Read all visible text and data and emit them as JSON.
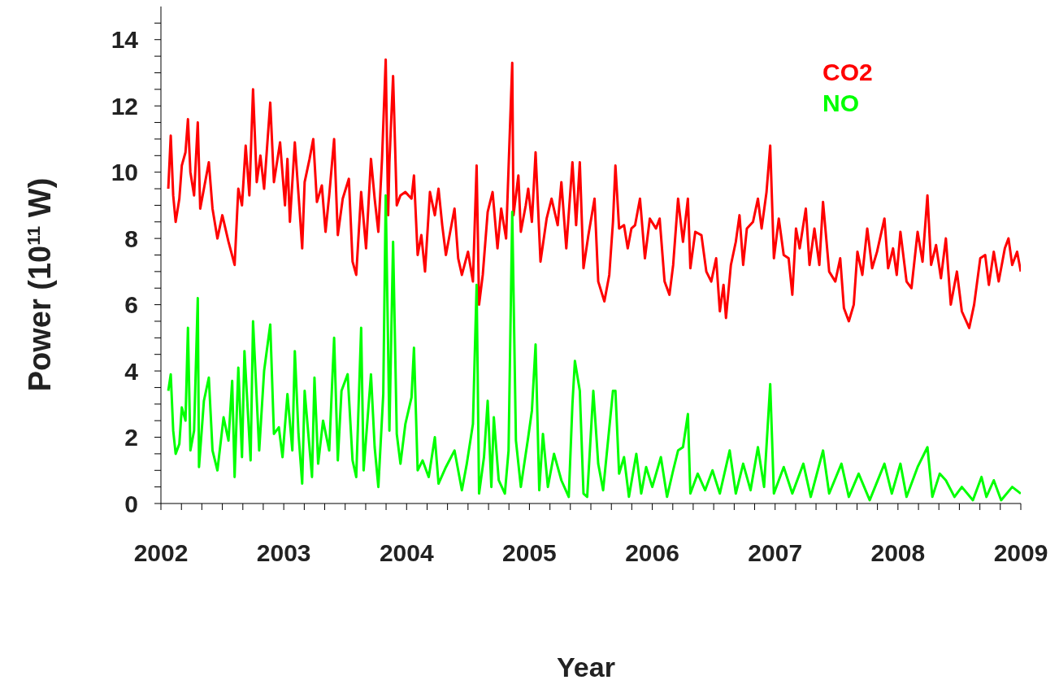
{
  "chart_data": {
    "type": "line",
    "xlabel": "Year",
    "ylabel": "Power (10$^{11}$ W)",
    "xlim": [
      2002,
      2009
    ],
    "ylim": [
      0,
      15
    ],
    "xticks": [
      2002,
      {
        "value": 2002.167,
        "label": null
      },
      {
        "value": 2002.333,
        "label": null
      },
      {
        "value": 2002.5,
        "label": null
      },
      {
        "value": 2002.667,
        "label": null
      },
      {
        "value": 2002.833,
        "label": null
      },
      2003,
      {
        "value": 2003.167,
        "label": null
      },
      {
        "value": 2003.333,
        "label": null
      },
      {
        "value": 2003.5,
        "label": null
      },
      {
        "value": 2003.667,
        "label": null
      },
      {
        "value": 2003.833,
        "label": null
      },
      2004,
      {
        "value": 2004.167,
        "label": null
      },
      {
        "value": 2004.333,
        "label": null
      },
      {
        "value": 2004.5,
        "label": null
      },
      {
        "value": 2004.667,
        "label": null
      },
      {
        "value": 2004.833,
        "label": null
      },
      2005,
      {
        "value": 2005.167,
        "label": null
      },
      {
        "value": 2005.333,
        "label": null
      },
      {
        "value": 2005.5,
        "label": null
      },
      {
        "value": 2005.667,
        "label": null
      },
      {
        "value": 2005.833,
        "label": null
      },
      2006,
      {
        "value": 2006.167,
        "label": null
      },
      {
        "value": 2006.333,
        "label": null
      },
      {
        "value": 2006.5,
        "label": null
      },
      {
        "value": 2006.667,
        "label": null
      },
      {
        "value": 2006.833,
        "label": null
      },
      2007,
      {
        "value": 2007.167,
        "label": null
      },
      {
        "value": 2007.333,
        "label": null
      },
      {
        "value": 2007.5,
        "label": null
      },
      {
        "value": 2007.667,
        "label": null
      },
      {
        "value": 2007.833,
        "label": null
      },
      2008,
      {
        "value": 2008.167,
        "label": null
      },
      {
        "value": 2008.333,
        "label": null
      },
      {
        "value": 2008.5,
        "label": null
      },
      {
        "value": 2008.667,
        "label": null
      },
      {
        "value": 2008.833,
        "label": null
      },
      2009
    ],
    "yticks": [
      0,
      {
        "value": 0.5,
        "label": null
      },
      {
        "value": 1,
        "label": null
      },
      {
        "value": 1.5,
        "label": null
      },
      2,
      {
        "value": 2.5,
        "label": null
      },
      {
        "value": 3,
        "label": null
      },
      {
        "value": 3.5,
        "label": null
      },
      4,
      {
        "value": 4.5,
        "label": null
      },
      {
        "value": 5,
        "label": null
      },
      {
        "value": 5.5,
        "label": null
      },
      6,
      {
        "value": 6.5,
        "label": null
      },
      {
        "value": 7,
        "label": null
      },
      {
        "value": 7.5,
        "label": null
      },
      8,
      {
        "value": 8.5,
        "label": null
      },
      {
        "value": 9,
        "label": null
      },
      {
        "value": 9.5,
        "label": null
      },
      10,
      {
        "value": 10.5,
        "label": null
      },
      {
        "value": 11,
        "label": null
      },
      {
        "value": 11.5,
        "label": null
      },
      12,
      {
        "value": 12.5,
        "label": null
      },
      {
        "value": 13,
        "label": null
      },
      {
        "value": 13.5,
        "label": null
      },
      14,
      {
        "value": 14.5,
        "label": null
      }
    ],
    "grid": false,
    "legend": "top right",
    "marker": "none",
    "line_style": "solid",
    "series": [
      {
        "name": "CO2",
        "color": "#ff0000",
        "x": [
          2002.06,
          2002.08,
          2002.1,
          2002.12,
          2002.15,
          2002.17,
          2002.2,
          2002.22,
          2002.24,
          2002.27,
          2002.3,
          2002.32,
          2002.37,
          2002.39,
          2002.42,
          2002.46,
          2002.5,
          2002.55,
          2002.6,
          2002.63,
          2002.66,
          2002.69,
          2002.72,
          2002.75,
          2002.78,
          2002.81,
          2002.84,
          2002.89,
          2002.92,
          2002.97,
          2003.01,
          2003.03,
          2003.05,
          2003.09,
          2003.13,
          2003.15,
          2003.17,
          2003.21,
          2003.24,
          2003.27,
          2003.31,
          2003.34,
          2003.37,
          2003.41,
          2003.44,
          2003.48,
          2003.53,
          2003.56,
          2003.59,
          2003.63,
          2003.67,
          2003.71,
          2003.74,
          2003.77,
          2003.8,
          2003.83,
          2003.85,
          2003.86,
          2003.89,
          2003.92,
          2003.95,
          2003.99,
          2004.04,
          2004.06,
          2004.09,
          2004.12,
          2004.15,
          2004.19,
          2004.23,
          2004.26,
          2004.29,
          2004.32,
          2004.39,
          2004.42,
          2004.45,
          2004.5,
          2004.54,
          2004.57,
          2004.59,
          2004.62,
          2004.66,
          2004.7,
          2004.74,
          2004.77,
          2004.81,
          2004.86,
          2004.87,
          2004.91,
          2004.93,
          2004.97,
          2004.99,
          2005.02,
          2005.05,
          2005.09,
          2005.14,
          2005.18,
          2005.23,
          2005.26,
          2005.3,
          2005.35,
          2005.38,
          2005.41,
          2005.44,
          2005.48,
          2005.53,
          2005.56,
          2005.61,
          2005.65,
          2005.68,
          2005.7,
          2005.73,
          2005.77,
          2005.8,
          2005.83,
          2005.86,
          2005.9,
          2005.94,
          2005.98,
          2006.03,
          2006.06,
          2006.1,
          2006.14,
          2006.17,
          2006.21,
          2006.25,
          2006.29,
          2006.31,
          2006.35,
          2006.4,
          2006.44,
          2006.48,
          2006.52,
          2006.55,
          2006.58,
          2006.6,
          2006.64,
          2006.68,
          2006.71,
          2006.74,
          2006.77,
          2006.82,
          2006.86,
          2006.89,
          2006.93,
          2006.96,
          2006.99,
          2007.03,
          2007.07,
          2007.11,
          2007.14,
          2007.17,
          2007.2,
          2007.25,
          2007.28,
          2007.32,
          2007.36,
          2007.39,
          2007.44,
          2007.49,
          2007.53,
          2007.56,
          2007.6,
          2007.64,
          2007.67,
          2007.71,
          2007.75,
          2007.79,
          2007.83,
          2007.89,
          2007.92,
          2007.96,
          2007.99,
          2008.02,
          2008.07,
          2008.11,
          2008.16,
          2008.2,
          2008.24,
          2008.27,
          2008.31,
          2008.35,
          2008.39,
          2008.43,
          2008.48,
          2008.52,
          2008.58,
          2008.62,
          2008.67,
          2008.71,
          2008.74,
          2008.78,
          2008.82,
          2008.87,
          2008.9,
          2008.93,
          2008.97,
          2009.0
        ],
        "values": [
          9.5,
          11.1,
          9.3,
          8.5,
          9.2,
          10.2,
          10.6,
          11.6,
          10.0,
          9.3,
          11.5,
          8.9,
          9.9,
          10.3,
          8.9,
          8.0,
          8.7,
          7.9,
          7.2,
          9.5,
          9.0,
          10.8,
          9.3,
          12.5,
          9.7,
          10.5,
          9.5,
          12.1,
          9.7,
          10.9,
          9.0,
          10.4,
          8.5,
          10.9,
          8.8,
          7.7,
          9.7,
          10.4,
          11.0,
          9.1,
          9.6,
          8.2,
          9.3,
          11.0,
          8.1,
          9.2,
          9.8,
          7.3,
          6.9,
          9.4,
          7.7,
          10.4,
          9.2,
          8.2,
          10.4,
          13.4,
          8.7,
          10.3,
          12.9,
          9.0,
          9.3,
          9.4,
          9.2,
          9.9,
          7.5,
          8.1,
          7.0,
          9.4,
          8.7,
          9.5,
          8.4,
          7.5,
          8.9,
          7.4,
          6.9,
          7.6,
          6.7,
          10.2,
          6.0,
          6.9,
          8.8,
          9.4,
          7.7,
          8.9,
          8.0,
          13.3,
          8.7,
          9.9,
          8.2,
          9.0,
          9.5,
          8.5,
          10.6,
          7.3,
          8.6,
          9.2,
          8.4,
          9.7,
          7.7,
          10.3,
          8.4,
          10.3,
          7.1,
          8.1,
          9.2,
          6.7,
          6.1,
          6.9,
          8.5,
          10.2,
          8.3,
          8.4,
          7.7,
          8.3,
          8.4,
          9.2,
          7.4,
          8.6,
          8.3,
          8.6,
          6.7,
          6.3,
          7.2,
          9.2,
          7.9,
          9.2,
          7.1,
          8.2,
          8.1,
          7.0,
          6.7,
          7.4,
          5.8,
          6.6,
          5.6,
          7.2,
          7.9,
          8.7,
          7.2,
          8.3,
          8.5,
          9.2,
          8.3,
          9.4,
          10.8,
          7.4,
          8.6,
          7.5,
          7.4,
          6.3,
          8.3,
          7.7,
          8.9,
          7.2,
          8.3,
          7.2,
          9.1,
          7.0,
          6.7,
          7.4,
          5.9,
          5.5,
          6.0,
          7.6,
          6.9,
          8.3,
          7.1,
          7.6,
          8.6,
          7.1,
          7.7,
          6.9,
          8.2,
          6.7,
          6.5,
          8.2,
          7.3,
          9.3,
          7.2,
          7.8,
          6.8,
          8.0,
          6.0,
          7.0,
          5.8,
          5.3,
          6.0,
          7.4,
          7.5,
          6.6,
          7.6,
          6.7,
          7.7,
          8.0,
          7.2,
          7.6,
          7.0
        ]
      },
      {
        "name": "NO",
        "color": "#00ff00",
        "x": [
          2002.06,
          2002.08,
          2002.1,
          2002.12,
          2002.15,
          2002.17,
          2002.2,
          2002.22,
          2002.24,
          2002.27,
          2002.3,
          2002.31,
          2002.35,
          2002.39,
          2002.42,
          2002.46,
          2002.51,
          2002.55,
          2002.58,
          2002.6,
          2002.63,
          2002.66,
          2002.68,
          2002.73,
          2002.75,
          2002.8,
          2002.84,
          2002.89,
          2002.92,
          2002.96,
          2002.99,
          2003.03,
          2003.07,
          2003.09,
          2003.12,
          2003.15,
          2003.17,
          2003.23,
          2003.25,
          2003.28,
          2003.32,
          2003.37,
          2003.41,
          2003.44,
          2003.47,
          2003.52,
          2003.56,
          2003.59,
          2003.63,
          2003.65,
          2003.71,
          2003.74,
          2003.77,
          2003.81,
          2003.83,
          2003.86,
          2003.89,
          2003.92,
          2003.95,
          2003.99,
          2004.04,
          2004.06,
          2004.09,
          2004.13,
          2004.18,
          2004.23,
          2004.26,
          2004.32,
          2004.39,
          2004.45,
          2004.49,
          2004.54,
          2004.57,
          2004.59,
          2004.63,
          2004.66,
          2004.69,
          2004.71,
          2004.75,
          2004.8,
          2004.83,
          2004.86,
          2004.89,
          2004.93,
          2004.99,
          2005.02,
          2005.05,
          2005.08,
          2005.11,
          2005.15,
          2005.2,
          2005.26,
          2005.32,
          2005.35,
          2005.37,
          2005.41,
          2005.44,
          2005.47,
          2005.52,
          2005.56,
          2005.6,
          2005.68,
          2005.7,
          2005.73,
          2005.77,
          2005.81,
          2005.87,
          2005.91,
          2005.95,
          2006.0,
          2006.07,
          2006.12,
          2006.17,
          2006.21,
          2006.25,
          2006.29,
          2006.31,
          2006.37,
          2006.43,
          2006.49,
          2006.55,
          2006.63,
          2006.68,
          2006.74,
          2006.8,
          2006.86,
          2006.91,
          2006.96,
          2006.99,
          2007.07,
          2007.14,
          2007.23,
          2007.29,
          2007.39,
          2007.44,
          2007.54,
          2007.6,
          2007.68,
          2007.77,
          2007.89,
          2007.95,
          2008.02,
          2008.07,
          2008.16,
          2008.24,
          2008.28,
          2008.34,
          2008.39,
          2008.46,
          2008.52,
          2008.61,
          2008.68,
          2008.72,
          2008.78,
          2008.84,
          2008.93,
          2009.0
        ],
        "values": [
          3.4,
          3.9,
          2.2,
          1.5,
          1.8,
          2.9,
          2.5,
          5.3,
          1.6,
          2.2,
          6.2,
          1.1,
          3.1,
          3.8,
          1.6,
          1.0,
          2.6,
          1.9,
          3.7,
          0.8,
          4.1,
          1.4,
          4.6,
          1.3,
          5.5,
          1.6,
          4.0,
          5.4,
          2.1,
          2.3,
          1.4,
          3.3,
          1.6,
          4.6,
          2.1,
          0.6,
          3.4,
          0.8,
          3.8,
          1.2,
          2.5,
          1.6,
          5.0,
          1.3,
          3.4,
          3.9,
          1.3,
          0.8,
          5.3,
          1.0,
          3.9,
          1.7,
          0.5,
          3.3,
          9.3,
          2.2,
          7.9,
          2.1,
          1.2,
          2.4,
          3.2,
          4.7,
          1.0,
          1.3,
          0.8,
          2.0,
          0.6,
          1.1,
          1.6,
          0.4,
          1.2,
          2.4,
          6.6,
          0.3,
          1.4,
          3.1,
          0.5,
          2.6,
          0.7,
          0.3,
          1.6,
          8.8,
          1.9,
          0.5,
          2.0,
          2.8,
          4.8,
          0.4,
          2.1,
          0.5,
          1.5,
          0.7,
          0.2,
          3.0,
          4.3,
          3.4,
          0.3,
          0.2,
          3.4,
          1.2,
          0.4,
          3.4,
          3.4,
          0.9,
          1.4,
          0.2,
          1.5,
          0.3,
          1.1,
          0.5,
          1.4,
          0.2,
          1.0,
          1.6,
          1.7,
          2.7,
          0.3,
          0.9,
          0.4,
          1.0,
          0.3,
          1.6,
          0.3,
          1.2,
          0.4,
          1.7,
          0.5,
          3.6,
          0.3,
          1.1,
          0.3,
          1.2,
          0.2,
          1.6,
          0.3,
          1.2,
          0.2,
          0.9,
          0.1,
          1.2,
          0.3,
          1.2,
          0.2,
          1.1,
          1.7,
          0.2,
          0.9,
          0.7,
          0.2,
          0.5,
          0.1,
          0.8,
          0.2,
          0.7,
          0.1,
          0.5,
          0.3
        ]
      }
    ]
  }
}
